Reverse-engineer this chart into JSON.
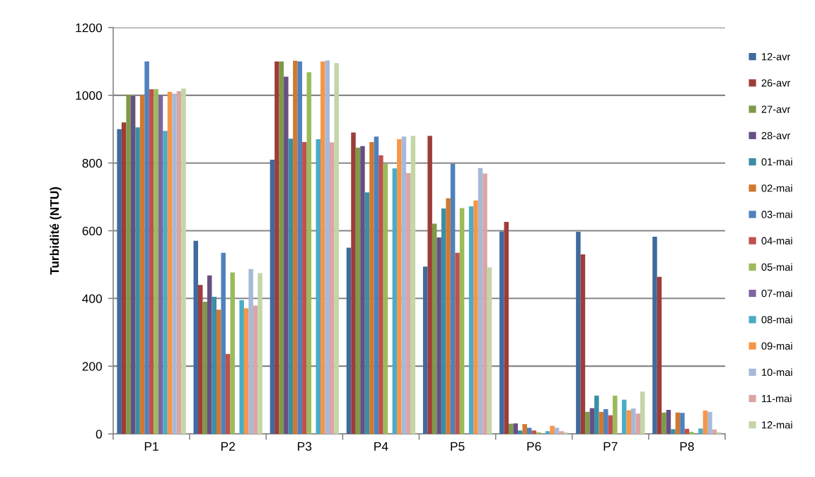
{
  "chart_data": {
    "type": "bar",
    "ylabel": "Turbidité (NTU)",
    "categories": [
      "P1",
      "P2",
      "P3",
      "P4",
      "P5",
      "P6",
      "P7",
      "P8"
    ],
    "ylim": [
      0,
      1200
    ],
    "yticks": [
      0,
      200,
      400,
      600,
      800,
      1000,
      1200
    ],
    "grid": "y",
    "legend": "right",
    "series": [
      {
        "name": "12-avr",
        "color": "#3f6a9e",
        "values": [
          900,
          570,
          810,
          550,
          494,
          598,
          597,
          582
        ]
      },
      {
        "name": "26-avr",
        "color": "#9e3c3a",
        "values": [
          920,
          440,
          1100,
          890,
          880,
          626,
          530,
          464
        ]
      },
      {
        "name": "27-avr",
        "color": "#7e9a48",
        "values": [
          1002,
          390,
          1100,
          845,
          621,
          30,
          65,
          63
        ]
      },
      {
        "name": "28-avr",
        "color": "#664f84",
        "values": [
          998,
          468,
          1055,
          850,
          580,
          31,
          76,
          71
        ]
      },
      {
        "name": "01-mai",
        "color": "#3a8ea5",
        "values": [
          905,
          405,
          872,
          713,
          666,
          10,
          113,
          14
        ]
      },
      {
        "name": "02-mai",
        "color": "#d0792f",
        "values": [
          1000,
          367,
          1102,
          862,
          696,
          29,
          65,
          63
        ]
      },
      {
        "name": "03-mai",
        "color": "#4f81bd",
        "values": [
          1100,
          535,
          1100,
          878,
          798,
          18,
          73,
          62
        ]
      },
      {
        "name": "04-mai",
        "color": "#c0504d",
        "values": [
          1018,
          236,
          862,
          823,
          535,
          10,
          55,
          15
        ]
      },
      {
        "name": "05-mai",
        "color": "#9bbb59",
        "values": [
          1018,
          477,
          1068,
          798,
          667,
          5,
          113,
          6
        ]
      },
      {
        "name": "07-mai",
        "color": "#8064a2",
        "values": [
          1000,
          null,
          null,
          null,
          null,
          null,
          null,
          null
        ]
      },
      {
        "name": "08-mai",
        "color": "#4bacc6",
        "values": [
          895,
          395,
          870,
          784,
          672,
          8,
          101,
          16
        ]
      },
      {
        "name": "09-mai",
        "color": "#f79646",
        "values": [
          1010,
          371,
          1100,
          870,
          689,
          24,
          70,
          69
        ]
      },
      {
        "name": "10-mai",
        "color": "#a7b9d9",
        "values": [
          1005,
          487,
          1103,
          878,
          785,
          18,
          75,
          65
        ]
      },
      {
        "name": "11-mai",
        "color": "#d9a6a5",
        "values": [
          1012,
          379,
          861,
          770,
          769,
          8,
          60,
          13
        ]
      },
      {
        "name": "12-mai",
        "color": "#c4d6a6",
        "values": [
          1020,
          475,
          1095,
          880,
          492,
          5,
          125,
          5
        ]
      }
    ]
  }
}
